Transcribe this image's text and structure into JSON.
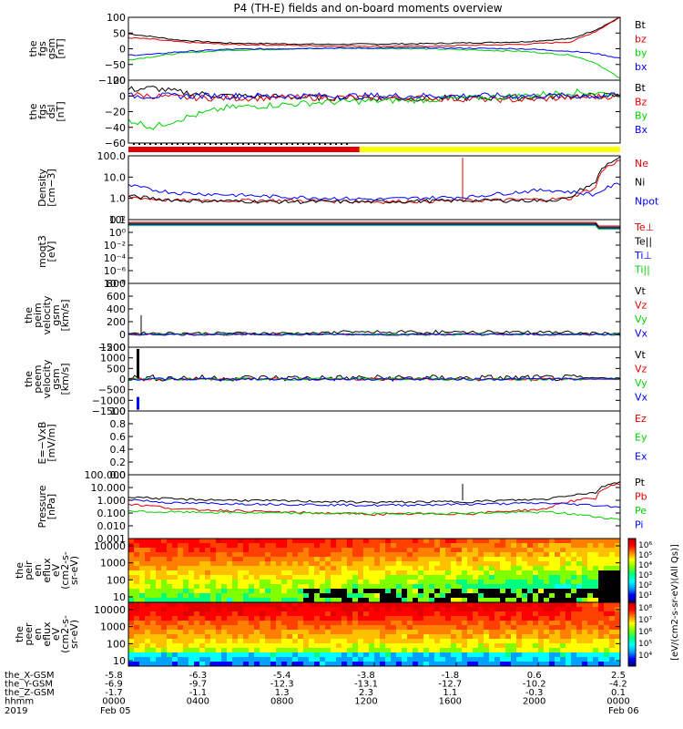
{
  "title": "P4 (TH-E) fields and on-board moments overview",
  "colors": {
    "black": "#000000",
    "red": "#e00000",
    "green": "#00d000",
    "blue": "#0000ff",
    "yellow": "#ffff00"
  },
  "chart_data": [
    {
      "type": "line",
      "panel": "fgs_gsm",
      "ylabel": [
        "the",
        "fgs",
        "gsm",
        "[nT]"
      ],
      "ylim": [
        -100,
        100
      ],
      "y_ticks": [
        "100",
        "50",
        "0",
        "−50",
        "−100"
      ],
      "series": [
        {
          "name": "Bt",
          "color": "black",
          "x": [
            0,
            0.05,
            0.1,
            0.2,
            0.4,
            0.6,
            0.8,
            0.9,
            0.95,
            1
          ],
          "values": [
            48,
            38,
            28,
            18,
            14,
            16,
            22,
            32,
            60,
            100
          ]
        },
        {
          "name": "bz",
          "color": "red",
          "x": [
            0,
            0.05,
            0.1,
            0.2,
            0.4,
            0.6,
            0.8,
            0.9,
            0.95,
            1
          ],
          "values": [
            35,
            30,
            22,
            14,
            9,
            8,
            14,
            22,
            55,
            100
          ]
        },
        {
          "name": "by",
          "color": "green",
          "x": [
            0,
            0.05,
            0.1,
            0.2,
            0.4,
            0.6,
            0.8,
            0.9,
            0.95,
            1
          ],
          "values": [
            -35,
            -25,
            -15,
            -5,
            2,
            0,
            -8,
            -20,
            -45,
            -95
          ]
        },
        {
          "name": "bx",
          "color": "blue",
          "x": [
            0,
            0.05,
            0.1,
            0.2,
            0.4,
            0.6,
            0.8,
            0.9,
            0.95,
            1
          ],
          "values": [
            -20,
            -18,
            -10,
            -2,
            2,
            3,
            0,
            -8,
            -15,
            -30
          ]
        }
      ]
    },
    {
      "type": "line",
      "panel": "fgs_dsl",
      "ylabel": [
        "the",
        "fgs",
        "dsl",
        "[nT]"
      ],
      "ylim": [
        -60,
        20
      ],
      "y_ticks": [
        "20",
        "0",
        "−20",
        "−40",
        "−60"
      ],
      "series": [
        {
          "name": "Bt",
          "color": "black",
          "x": [
            0,
            0.05,
            0.1,
            0.2,
            0.4,
            0.6,
            0.8,
            0.9,
            1
          ],
          "values": [
            8,
            10,
            5,
            0,
            -2,
            -3,
            -2,
            0,
            0
          ]
        },
        {
          "name": "Bz",
          "color": "red",
          "x": [
            0,
            0.05,
            0.1,
            0.2,
            0.4,
            0.6,
            0.8,
            0.9,
            1
          ],
          "values": [
            2,
            0,
            -2,
            -3,
            -2,
            -3,
            -5,
            -2,
            0
          ]
        },
        {
          "name": "By",
          "color": "green",
          "x": [
            0,
            0.05,
            0.1,
            0.2,
            0.4,
            0.6,
            0.8,
            0.9,
            1
          ],
          "values": [
            -30,
            -40,
            -30,
            -15,
            -8,
            -5,
            0,
            5,
            2
          ]
        },
        {
          "name": "Bx",
          "color": "blue",
          "x": [
            0,
            0.05,
            0.1,
            0.2,
            0.4,
            0.6,
            0.8,
            0.9,
            1
          ],
          "values": [
            0,
            0,
            0,
            0,
            0,
            0,
            0,
            0,
            0
          ]
        }
      ]
    },
    {
      "type": "line",
      "panel": "density",
      "ylabel": [
        "Density",
        "[cm−3]"
      ],
      "ylim": [
        0.1,
        100
      ],
      "y_ticks": [
        "100.0",
        "10.0",
        "1.0",
        "0.1"
      ],
      "series": [
        {
          "name": "Ne",
          "color": "red",
          "x": [
            0,
            0.05,
            0.1,
            0.3,
            0.5,
            0.7,
            0.85,
            0.9,
            0.95,
            1
          ],
          "values": [
            1.2,
            0.9,
            0.8,
            0.8,
            0.7,
            0.8,
            0.9,
            1.0,
            3,
            60
          ]
        },
        {
          "name": "Ni",
          "color": "black",
          "x": [
            0,
            0.05,
            0.1,
            0.3,
            0.5,
            0.7,
            0.85,
            0.9,
            0.95,
            1
          ],
          "values": [
            1.3,
            1.0,
            0.8,
            0.7,
            0.7,
            0.8,
            0.8,
            1.0,
            5,
            80
          ]
        },
        {
          "name": "Npot",
          "color": "blue",
          "x": [
            0,
            0.05,
            0.1,
            0.3,
            0.5,
            0.7,
            0.85,
            0.9,
            0.95,
            1
          ],
          "values": [
            4,
            2.5,
            1.8,
            1.2,
            0.9,
            1.2,
            2.5,
            2,
            1.5,
            5
          ]
        }
      ]
    },
    {
      "type": "line",
      "panel": "temperature",
      "ylabel": [
        "moqt3",
        "[eV]"
      ],
      "y_ticks": [
        "10²",
        "10⁰",
        "10⁻²",
        "10⁻⁴",
        "10⁻⁶",
        "10⁻⁸"
      ],
      "series": [
        {
          "name": "Te⊥",
          "color": "red"
        },
        {
          "name": "Te||",
          "color": "black"
        },
        {
          "name": "Ti⊥",
          "color": "blue"
        },
        {
          "name": "Ti||",
          "color": "green"
        }
      ]
    },
    {
      "type": "line",
      "panel": "peim_velocity",
      "ylabel": [
        "the",
        "peim",
        "velocity",
        "gsm",
        "[km/s]"
      ],
      "ylim": [
        -200,
        800
      ],
      "y_ticks": [
        "800",
        "600",
        "400",
        "200",
        "0",
        "−200"
      ],
      "series": [
        {
          "name": "Vt",
          "color": "black"
        },
        {
          "name": "Vz",
          "color": "red"
        },
        {
          "name": "Vy",
          "color": "green"
        },
        {
          "name": "Vx",
          "color": "blue"
        }
      ]
    },
    {
      "type": "line",
      "panel": "peem_velocity",
      "ylabel": [
        "the",
        "peem",
        "velocity",
        "gsm",
        "[km/s]"
      ],
      "ylim": [
        -1500,
        1500
      ],
      "y_ticks": [
        "1500",
        "1000",
        "500",
        "0",
        "−500",
        "−1000",
        "−1500"
      ],
      "series": [
        {
          "name": "Vt",
          "color": "black"
        },
        {
          "name": "Vz",
          "color": "red"
        },
        {
          "name": "Vy",
          "color": "green"
        },
        {
          "name": "Vx",
          "color": "blue"
        }
      ]
    },
    {
      "type": "line",
      "panel": "efield",
      "ylabel": [
        "E=−VxB",
        "[mV/m]"
      ],
      "ylim": [
        0,
        1
      ],
      "y_ticks": [
        "1.0",
        "0.8",
        "0.6",
        "0.4",
        "0.2",
        "0.0"
      ],
      "series": [
        {
          "name": "Ez",
          "color": "red"
        },
        {
          "name": "Ey",
          "color": "green"
        },
        {
          "name": "Ex",
          "color": "blue"
        }
      ]
    },
    {
      "type": "line",
      "panel": "pressure",
      "ylabel": [
        "Pressure",
        "[nPa]"
      ],
      "ylim": [
        0.001,
        100
      ],
      "y_ticks": [
        "100.000",
        "10.000",
        "1.000",
        "0.100",
        "0.010",
        "0.001"
      ],
      "series": [
        {
          "name": "Pt",
          "color": "black",
          "x": [
            0,
            0.05,
            0.1,
            0.3,
            0.5,
            0.7,
            0.85,
            0.95,
            1
          ],
          "values": [
            2,
            1.5,
            1.2,
            0.9,
            0.7,
            0.8,
            1.2,
            4,
            30
          ]
        },
        {
          "name": "Pb",
          "color": "red",
          "x": [
            0,
            0.05,
            0.1,
            0.3,
            0.5,
            0.7,
            0.85,
            0.95,
            1
          ],
          "values": [
            0.5,
            0.35,
            0.2,
            0.12,
            0.08,
            0.09,
            0.2,
            1.5,
            20
          ]
        },
        {
          "name": "Pe",
          "color": "green",
          "x": [
            0,
            0.05,
            0.1,
            0.3,
            0.5,
            0.7,
            0.85,
            0.95,
            1
          ],
          "values": [
            0.15,
            0.12,
            0.12,
            0.1,
            0.09,
            0.1,
            0.12,
            0.05,
            0.03
          ]
        },
        {
          "name": "Pi",
          "color": "blue",
          "x": [
            0,
            0.05,
            0.1,
            0.3,
            0.5,
            0.7,
            0.85,
            0.95,
            1
          ],
          "values": [
            1.2,
            0.8,
            0.6,
            0.5,
            0.4,
            0.5,
            0.6,
            0.4,
            0.3
          ]
        }
      ]
    },
    {
      "type": "heatmap",
      "panel": "peir_en_eflux",
      "ylabel": [
        "the",
        "peir",
        "en",
        "eflux",
        "eV",
        "(cm2-s-",
        "sr-eV)"
      ],
      "y_ticks": [
        "10000",
        "1000",
        "100",
        "10"
      ]
    },
    {
      "type": "heatmap",
      "panel": "peer_en_eflux",
      "ylabel": [
        "the",
        "peer",
        "en",
        "eflux",
        "eV",
        "(cm2-s-",
        "sr-eV)"
      ],
      "y_ticks": [
        "10000",
        "1000",
        "100",
        "10"
      ]
    }
  ],
  "colorbar": {
    "label": "[eV/(cm2-s-sr-eV)(All Qs)]",
    "ticks_top": [
      "10⁶",
      "10⁵",
      "10⁴",
      "10³",
      "10²",
      "10¹"
    ],
    "ticks_bottom": [
      "10⁸",
      "10⁷",
      "10⁶",
      "10⁵",
      "10⁴"
    ]
  },
  "x_axis": {
    "rows": [
      {
        "label": "the_X-GSM",
        "values": [
          "-5.8",
          "-6.3",
          "-5.4",
          "-3.8",
          "-1.8",
          "0.6",
          "2.5"
        ]
      },
      {
        "label": "the_Y-GSM",
        "values": [
          "-6.9",
          "-9.7",
          "-12.3",
          "-13.1",
          "-12.7",
          "-10.2",
          "-4.2"
        ]
      },
      {
        "label": "the_Z-GSM",
        "values": [
          "-1.7",
          "-1.1",
          "1.3",
          "2.3",
          "1.1",
          "-0.3",
          "0.1"
        ]
      },
      {
        "label": "hhmm",
        "values": [
          "0000",
          "0400",
          "0800",
          "1200",
          "1600",
          "2000",
          "0000"
        ]
      }
    ],
    "year": "2019",
    "date_start": "Feb 05",
    "date_end": "Feb 06"
  },
  "mode_bar": {
    "segments": [
      {
        "color": "red",
        "from": 0,
        "to": 0.47
      },
      {
        "color": "yellow",
        "from": 0.47,
        "to": 1
      }
    ]
  }
}
